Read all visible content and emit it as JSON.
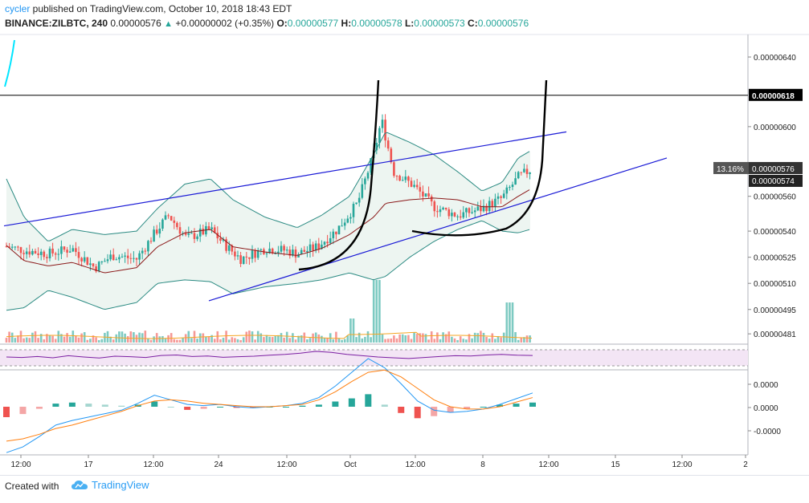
{
  "header": {
    "user": "cycler",
    "published_text": " published on TradingView.com, October 10, 2018 18:43 EDT",
    "symbol": "BINANCE:ZILBTC, 240",
    "last": "0.00000576",
    "change_arrow": "▲",
    "change": "+0.00000002 (+0.35%)",
    "o_label": "O:",
    "o_val": "0.00000577",
    "h_label": "H:",
    "h_val": "0.00000578",
    "l_label": "L:",
    "l_val": "0.00000573",
    "c_label": "C:",
    "c_val": "0.00000576"
  },
  "footer": {
    "created_with": "Created with",
    "brand": "TradingView"
  },
  "colors": {
    "up": "#26a69a",
    "down": "#ef5350",
    "trendline": "#1a1ad6",
    "bollinger": "#2a8a82",
    "basis": "#8b1a1a",
    "rsi": "#7b1fa2",
    "macd_line": "#2196f3",
    "signal_line": "#ff7f0e"
  },
  "chart_data": [
    {
      "type": "candlestick",
      "series_label": "ZILBTC 240",
      "y_ticks": [
        "0.00000640",
        "0.00000600",
        "0.00000560",
        "0.00000540",
        "0.00000525",
        "0.00000510",
        "0.00000495",
        "0.00000481"
      ],
      "ylim": [
        4.76e-06,
        6.52e-06
      ],
      "price_line": {
        "label": "0.00000618",
        "value": 6.18e-06
      },
      "last_price": {
        "label": "0.00000576",
        "value": 5.76e-06
      },
      "second_price": {
        "label": "0.00000574",
        "value": 5.74e-06
      },
      "percent_badge": "13.16%",
      "x_ticks": [
        "12:00",
        "17",
        "12:00",
        "24",
        "12:00",
        "Oct",
        "12:00",
        "8",
        "12:00",
        "15",
        "12:00",
        "2"
      ],
      "key_levels": {
        "close": [
          [
            0,
            532
          ],
          [
            30,
            529
          ],
          [
            60,
            527
          ],
          [
            90,
            530
          ],
          [
            118,
            519
          ],
          [
            140,
            526
          ],
          [
            170,
            524
          ],
          [
            196,
            541
          ],
          [
            210,
            549
          ],
          [
            232,
            536
          ],
          [
            262,
            541
          ],
          [
            280,
            532
          ],
          [
            300,
            524
          ],
          [
            330,
            530
          ],
          [
            355,
            529
          ],
          [
            370,
            527
          ],
          [
            395,
            531
          ],
          [
            420,
            541
          ],
          [
            445,
            556
          ],
          [
            465,
            584
          ],
          [
            475,
            604
          ],
          [
            490,
            574
          ],
          [
            515,
            566
          ],
          [
            540,
            554
          ],
          [
            570,
            549
          ],
          [
            600,
            553
          ],
          [
            625,
            559
          ],
          [
            645,
            571
          ],
          [
            663,
            576
          ]
        ],
        "upper_band": [
          [
            0,
            578
          ],
          [
            30,
            548
          ],
          [
            60,
            534
          ],
          [
            90,
            541
          ],
          [
            130,
            538
          ],
          [
            170,
            540
          ],
          [
            196,
            553
          ],
          [
            230,
            567
          ],
          [
            262,
            570
          ],
          [
            290,
            558
          ],
          [
            330,
            548
          ],
          [
            370,
            542
          ],
          [
            400,
            549
          ],
          [
            435,
            560
          ],
          [
            465,
            584
          ],
          [
            480,
            597
          ],
          [
            510,
            591
          ],
          [
            540,
            584
          ],
          [
            570,
            574
          ],
          [
            600,
            563
          ],
          [
            625,
            568
          ],
          [
            645,
            582
          ],
          [
            660,
            586
          ]
        ],
        "lower_band": [
          [
            0,
            494
          ],
          [
            30,
            496
          ],
          [
            60,
            506
          ],
          [
            90,
            502
          ],
          [
            130,
            495
          ],
          [
            170,
            499
          ],
          [
            196,
            510
          ],
          [
            230,
            512
          ],
          [
            262,
            511
          ],
          [
            290,
            504
          ],
          [
            330,
            508
          ],
          [
            370,
            510
          ],
          [
            400,
            512
          ],
          [
            435,
            516
          ],
          [
            465,
            512
          ],
          [
            480,
            514
          ],
          [
            510,
            525
          ],
          [
            540,
            534
          ],
          [
            570,
            541
          ],
          [
            600,
            546
          ],
          [
            625,
            540
          ],
          [
            645,
            539
          ],
          [
            660,
            541
          ]
        ],
        "basis": [
          [
            0,
            535
          ],
          [
            30,
            523
          ],
          [
            60,
            520
          ],
          [
            90,
            522
          ],
          [
            130,
            516
          ],
          [
            170,
            519
          ],
          [
            196,
            531
          ],
          [
            230,
            539
          ],
          [
            262,
            541
          ],
          [
            290,
            531
          ],
          [
            330,
            528
          ],
          [
            370,
            526
          ],
          [
            400,
            530
          ],
          [
            435,
            538
          ],
          [
            465,
            548
          ],
          [
            480,
            556
          ],
          [
            510,
            558
          ],
          [
            540,
            559
          ],
          [
            570,
            558
          ],
          [
            600,
            554
          ],
          [
            625,
            554
          ],
          [
            645,
            560
          ],
          [
            660,
            564
          ]
        ]
      },
      "trendlines": [
        {
          "name": "upper-channel",
          "from": [
            5,
            543
          ],
          "to": [
            705,
            597
          ]
        },
        {
          "name": "lower-channel",
          "from": [
            260,
            500
          ],
          "to": [
            830,
            582
          ]
        }
      ],
      "volume_note": "volume histogram at bottom of pane"
    },
    {
      "type": "line",
      "series_label": "RSI",
      "values": [
        50,
        48,
        52,
        47,
        55,
        50,
        46,
        53,
        51,
        48,
        56,
        58,
        52,
        54,
        49,
        51,
        53,
        57,
        60,
        65,
        72,
        68,
        60,
        55,
        50,
        47,
        44,
        48,
        52,
        55,
        54,
        58,
        60,
        57,
        56
      ]
    },
    {
      "type": "bar",
      "series_label": "MACD",
      "y_ticks": [
        "0.0000",
        "0.0000",
        "-0.0000"
      ],
      "macd_line": [
        -4,
        -3.5,
        -2.6,
        -1.6,
        -1.2,
        -0.9,
        -0.6,
        -0.3,
        0.3,
        1.0,
        0.6,
        0.2,
        0.1,
        0.2,
        0,
        -0.1,
        0,
        0.1,
        0.3,
        0.8,
        1.8,
        3.0,
        4.2,
        3.4,
        2.0,
        0.5,
        -0.3,
        -0.5,
        -0.4,
        -0.2,
        0.2,
        0.7,
        1.2
      ],
      "signal_line": [
        -3.0,
        -2.8,
        -2.4,
        -1.9,
        -1.6,
        -1.2,
        -0.8,
        -0.4,
        0.1,
        0.5,
        0.6,
        0.5,
        0.3,
        0.2,
        0.1,
        0,
        0,
        0.1,
        0.2,
        0.6,
        1.3,
        2.2,
        3.0,
        3.2,
        2.6,
        1.6,
        0.6,
        0,
        -0.2,
        -0.2,
        0,
        0.4,
        0.8
      ],
      "histogram": [
        -1,
        -0.7,
        -0.2,
        0.3,
        0.4,
        0.3,
        0.2,
        0.1,
        0.2,
        0.5,
        0,
        -0.3,
        -0.2,
        0,
        -0.1,
        -0.1,
        0,
        0,
        0.1,
        0.2,
        0.5,
        0.8,
        1.2,
        0.2,
        -0.6,
        -1.1,
        -0.9,
        -0.5,
        -0.2,
        0,
        0.2,
        0.3,
        0.4
      ]
    }
  ]
}
